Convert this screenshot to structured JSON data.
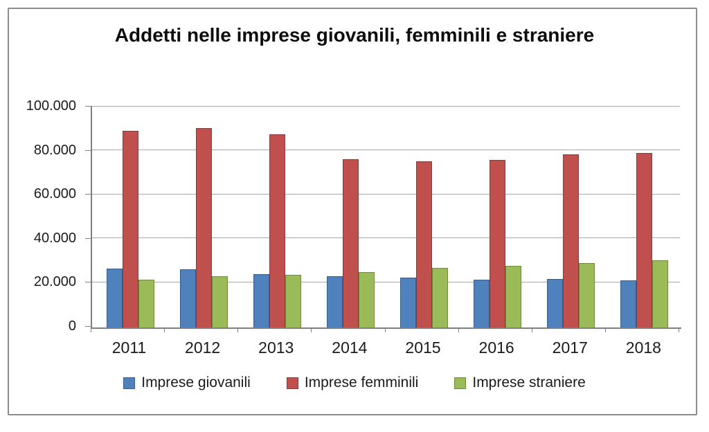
{
  "window": {
    "background": "#ffffff",
    "frame_border_color": "#8c8c8c"
  },
  "chart_data": {
    "type": "bar",
    "title": "Addetti nelle imprese giovanili, femminili e straniere",
    "categories": [
      "2011",
      "2012",
      "2013",
      "2014",
      "2015",
      "2016",
      "2017",
      "2018"
    ],
    "series": [
      {
        "name": "Imprese giovanili",
        "color": "#4F81BD",
        "border_color": "#385D8A",
        "values": [
          26700,
          26300,
          24200,
          23400,
          22500,
          21700,
          22000,
          21400
        ]
      },
      {
        "name": "Imprese femminili",
        "color": "#C0504D",
        "border_color": "#8C3836",
        "values": [
          89300,
          90700,
          87600,
          76300,
          75400,
          76000,
          78700,
          79200
        ]
      },
      {
        "name": "Imprese straniere",
        "color": "#9BBB59",
        "border_color": "#71893F",
        "values": [
          21700,
          23300,
          23900,
          25200,
          26900,
          27900,
          29400,
          30400
        ]
      }
    ],
    "y_ticks": [
      {
        "label": "0",
        "value": 0
      },
      {
        "label": "20.000",
        "value": 20000
      },
      {
        "label": "40.000",
        "value": 40000
      },
      {
        "label": "60.000",
        "value": 60000
      },
      {
        "label": "80.000",
        "value": 80000
      },
      {
        "label": "100.000",
        "value": 100000
      }
    ],
    "ylim": [
      0,
      100000
    ],
    "xlabel": "",
    "ylabel": "",
    "grid": true,
    "legend_position": "bottom",
    "gridline_color": "#a6a6a6",
    "axis_color": "#7f7f7f",
    "text_color": "#1a1a1a"
  }
}
